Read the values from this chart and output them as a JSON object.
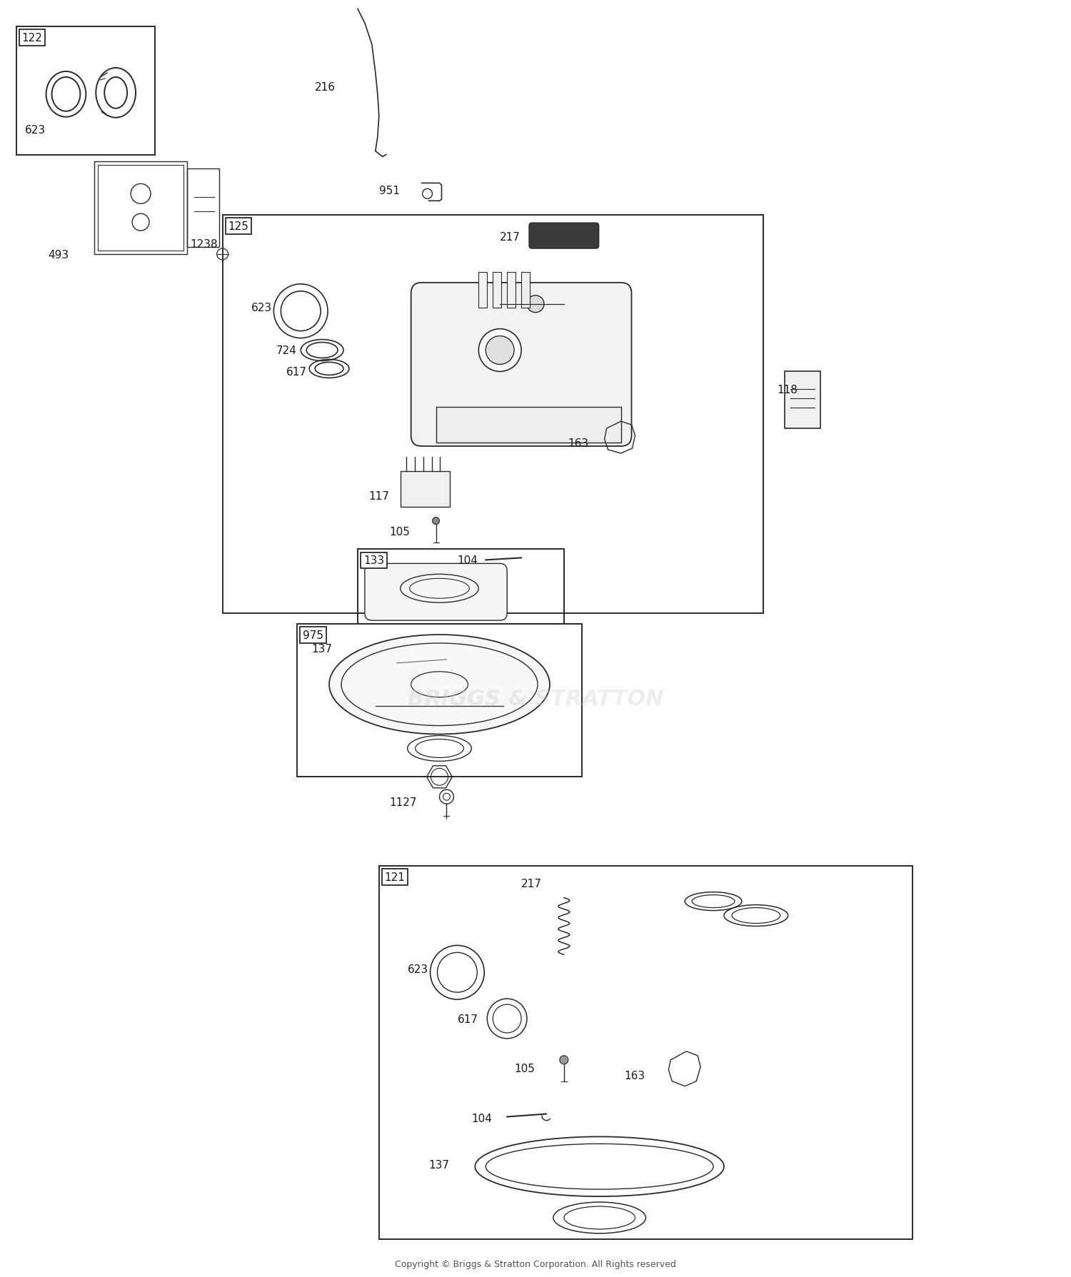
{
  "bg_color": "#ffffff",
  "line_color": "#2a2a2a",
  "text_color": "#1a1a1a",
  "copyright_text": "Copyright © Briggs & Stratton Corporation. All Rights reserved",
  "watermark_text": "BRIGGS & STRATTON",
  "figsize": [
    15.0,
    17.9
  ],
  "dpi": 100
}
